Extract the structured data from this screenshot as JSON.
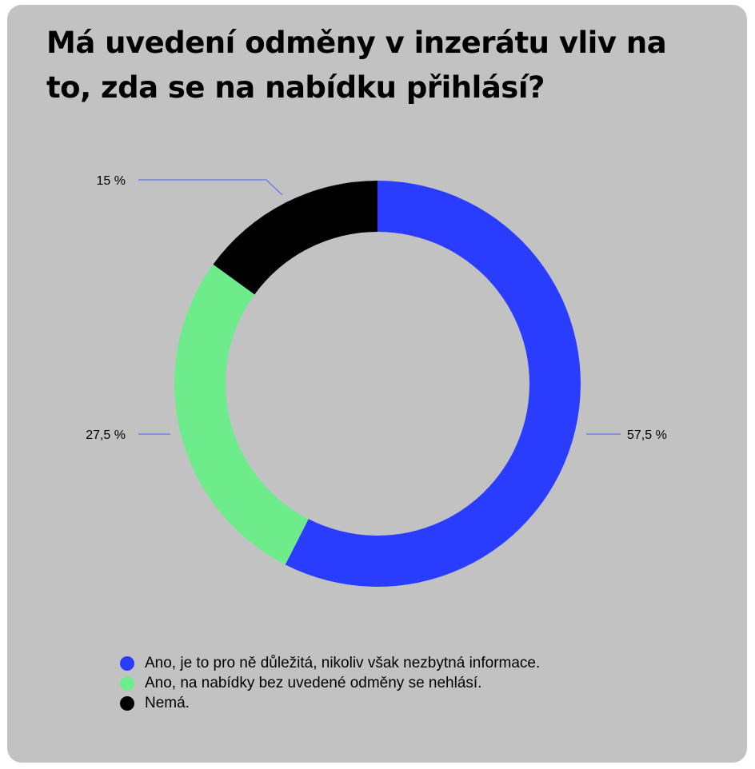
{
  "chart_data": {
    "type": "pie",
    "variant": "donut",
    "title": "Má uvedení odměny v inzerátu vliv na to, zda se na nabídku přihlásí?",
    "slices": [
      {
        "name": "Ano, je to pro ně důležitá, nikoliv však nezbytná informace.",
        "value": 57.5,
        "label": "57,5 %",
        "color": "#2a3dff"
      },
      {
        "name": "Ano, na nabídky bez uvedené odměny se nehlásí.",
        "value": 27.5,
        "label": "27,5 %",
        "color": "#6eec8c"
      },
      {
        "name": "Nemá.",
        "value": 15,
        "label": "15 %",
        "color": "#000000"
      }
    ],
    "start_angle": "12 o'clock",
    "direction": "clockwise",
    "legend_position": "bottom-left",
    "leader_color": "#4c62ff"
  }
}
